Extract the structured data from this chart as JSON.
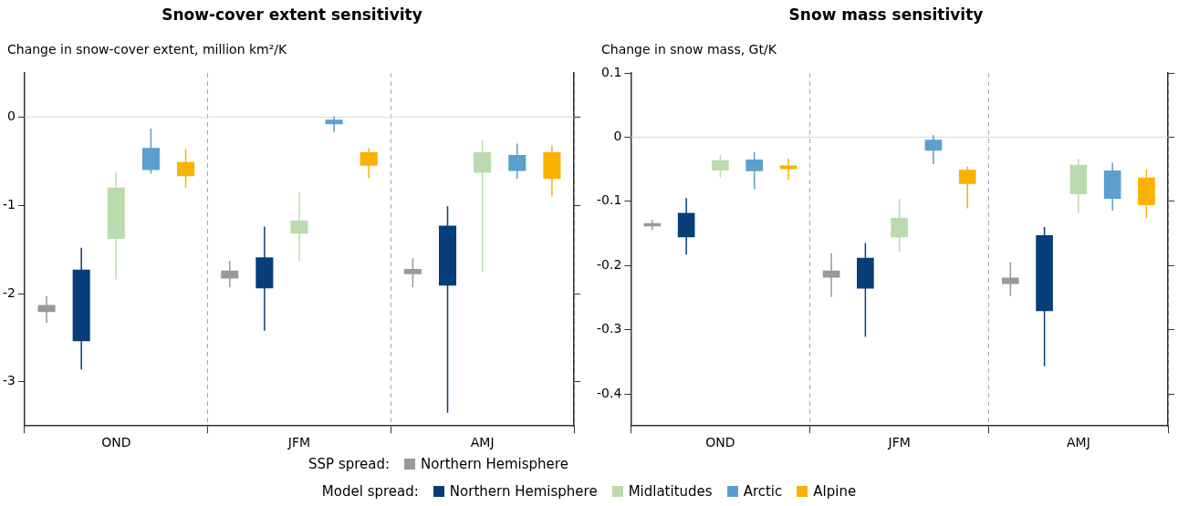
{
  "chart_data": [
    {
      "type": "bar",
      "title": "Snow-cover extent sensitivity",
      "ylabel": "Change in snow-cover extent, million km²/K",
      "categories": [
        "OND",
        "JFM",
        "AMJ"
      ],
      "ylim": [
        -3.5,
        0.5
      ],
      "yticks": [
        -3,
        -2,
        -1,
        0
      ],
      "grid": "x",
      "legend": "bottom",
      "annotations": [
        "SSP spread:",
        "Model spread:"
      ],
      "ref_lines": [
        {
          "axis": "y",
          "value": 0,
          "color": "#d9d9d9"
        }
      ],
      "series": [
        {
          "name": "Northern Hemisphere",
          "color": "#999999",
          "base": [
            -2.21,
            -1.83,
            -1.78
          ],
          "values": [
            0.08,
            0.09,
            0.06
          ],
          "errors": [
            [
              -2.33,
              -2.03
            ],
            [
              -1.93,
              -1.63
            ],
            [
              -1.93,
              -1.6
            ]
          ]
        },
        {
          "name": "Northern Hemisphere",
          "color": "#073d78",
          "base": [
            -2.54,
            -1.94,
            -1.91
          ],
          "values": [
            0.81,
            0.35,
            0.68
          ],
          "errors": [
            [
              -2.86,
              -1.48
            ],
            [
              -2.42,
              -1.24
            ],
            [
              -3.35,
              -1.01
            ]
          ]
        },
        {
          "name": "Midlatitudes",
          "color": "#badbae",
          "base": [
            -1.38,
            -1.32,
            -0.63
          ],
          "values": [
            0.58,
            0.15,
            0.23
          ],
          "errors": [
            [
              -1.84,
              -0.62
            ],
            [
              -1.63,
              -0.85
            ],
            [
              -1.75,
              -0.26
            ]
          ]
        },
        {
          "name": "Arctic",
          "color": "#5b9fcc",
          "base": [
            -0.6,
            -0.08,
            -0.61
          ],
          "values": [
            0.25,
            0.05,
            0.18
          ],
          "errors": [
            [
              -0.64,
              -0.13
            ],
            [
              -0.17,
              0.01
            ],
            [
              -0.7,
              -0.3
            ]
          ]
        },
        {
          "name": "Alpine",
          "color": "#f9b200",
          "base": [
            -0.67,
            -0.55,
            -0.7
          ],
          "values": [
            0.16,
            0.15,
            0.3
          ],
          "errors": [
            [
              -0.8,
              -0.36
            ],
            [
              -0.69,
              -0.35
            ],
            [
              -0.9,
              -0.32
            ]
          ]
        }
      ]
    },
    {
      "type": "bar",
      "title": "Snow mass sensitivity",
      "ylabel": "Change in snow mass, Gt/K",
      "categories": [
        "OND",
        "JFM",
        "AMJ"
      ],
      "ylim": [
        -0.45,
        0.1
      ],
      "yticks": [
        {
          "value": -0.4,
          "label": "-0.4"
        },
        {
          "value": -0.3,
          "label": "-0.3"
        },
        {
          "value": -0.2,
          "label": "-0.2"
        },
        {
          "value": -0.1,
          "label": "-0.1"
        },
        0,
        0.1
      ],
      "grid": "x",
      "ref_lines": [
        {
          "axis": "y",
          "value": 0,
          "color": "#d9d9d9"
        }
      ],
      "series": [
        {
          "color": "#999999",
          "base": [
            -0.139,
            -0.219,
            -0.229
          ],
          "values": [
            0.005,
            0.011,
            0.01
          ],
          "errors": [
            [
              -0.145,
              -0.129
            ],
            [
              -0.249,
              -0.181
            ],
            [
              -0.248,
              -0.195
            ]
          ]
        },
        {
          "color": "#073d78",
          "base": [
            -0.156,
            -0.236,
            -0.271
          ],
          "values": [
            0.038,
            0.048,
            0.118
          ],
          "errors": [
            [
              -0.183,
              -0.095
            ],
            [
              -0.311,
              -0.165
            ],
            [
              -0.357,
              -0.14
            ]
          ]
        },
        {
          "color": "#badbae",
          "base": [
            -0.052,
            -0.156,
            -0.089
          ],
          "values": [
            0.016,
            0.03,
            0.046
          ],
          "errors": [
            [
              -0.063,
              -0.028
            ],
            [
              -0.179,
              -0.096
            ],
            [
              -0.118,
              -0.034
            ]
          ]
        },
        {
          "color": "#5b9fcc",
          "base": [
            -0.053,
            -0.021,
            -0.096
          ],
          "values": [
            0.018,
            0.017,
            0.044
          ],
          "errors": [
            [
              -0.081,
              -0.023
            ],
            [
              -0.042,
              0.003
            ],
            [
              -0.115,
              -0.04
            ]
          ]
        },
        {
          "color": "#f9b200",
          "base": [
            -0.05,
            -0.073,
            -0.106
          ],
          "values": [
            0.006,
            0.022,
            0.043
          ],
          "errors": [
            [
              -0.067,
              -0.033
            ],
            [
              -0.111,
              -0.046
            ],
            [
              -0.126,
              -0.05
            ]
          ]
        }
      ]
    }
  ]
}
